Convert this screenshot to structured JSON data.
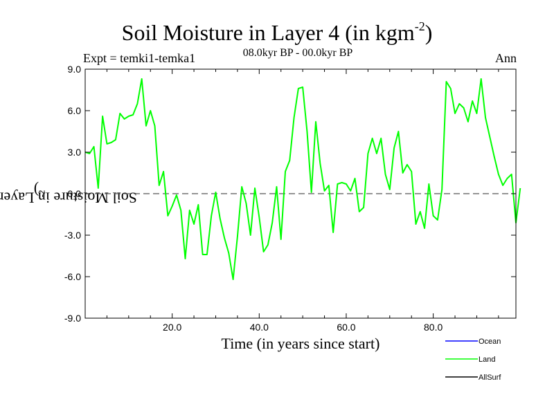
{
  "chart_data": {
    "type": "line",
    "title_main": "Soil Moisture in Layer 4 (in kgm",
    "title_sup": "-2",
    "title_close": ")",
    "expt": "Expt = temki1-temka1",
    "period": "08.0kyr BP - 00.0kyr BP",
    "season": "Ann",
    "xlabel": "Time (in years since start)",
    "ylabel_main": "Soil Moisture in Layer 4 (in kgm",
    "ylabel_sup": "-2",
    "ylabel_close": ")",
    "xlim": [
      0,
      99
    ],
    "ylim": [
      -9,
      9
    ],
    "x_ticks": [
      20,
      40,
      60,
      80
    ],
    "x_tick_labels": [
      "20.0",
      "40.0",
      "60.0",
      "80.0"
    ],
    "y_ticks": [
      -9,
      -6,
      -3,
      0,
      3,
      6,
      9
    ],
    "y_tick_labels": [
      "-9.0",
      "-6.0",
      "-3.0",
      "0.0",
      "3.0",
      "6.0",
      "9.0"
    ],
    "zero_line": 0,
    "colors": {
      "Ocean": "#0000ff",
      "Land": "#00ff00",
      "AllSurf": "#000000"
    },
    "legend": [
      "Ocean",
      "Land",
      "AllSurf"
    ],
    "series": [
      {
        "name": "Land",
        "values": [
          3.0,
          2.9,
          3.4,
          0.4,
          5.6,
          3.6,
          3.7,
          3.9,
          5.8,
          5.4,
          5.6,
          5.7,
          6.5,
          8.3,
          4.9,
          6.0,
          4.9,
          0.6,
          1.6,
          -1.6,
          -0.9,
          -0.1,
          -1.2,
          -4.7,
          -1.2,
          -2.2,
          -0.8,
          -4.4,
          -4.4,
          -1.6,
          0.1,
          -1.8,
          -3.2,
          -4.3,
          -6.2,
          -3.1,
          0.5,
          -0.7,
          -3.0,
          0.4,
          -1.7,
          -4.2,
          -3.7,
          -2.1,
          0.5,
          -3.3,
          1.6,
          2.4,
          5.5,
          7.6,
          7.7,
          4.5,
          0.1,
          5.2,
          2.2,
          0.2,
          0.6,
          -2.8,
          0.7,
          0.8,
          0.7,
          0.2,
          1.1,
          -1.3,
          -1.0,
          2.9,
          4.0,
          2.9,
          4.0,
          1.4,
          0.3,
          3.3,
          4.5,
          1.5,
          2.1,
          1.6,
          -2.2,
          -1.3,
          -2.5,
          0.7,
          -1.6,
          -1.9,
          0.3,
          8.1,
          7.6,
          5.8,
          6.5,
          6.2,
          5.2,
          6.7,
          5.8,
          8.3,
          5.5,
          4.1,
          2.7,
          1.4,
          0.6,
          1.1,
          1.4,
          -2.1,
          0.4
        ]
      }
    ]
  }
}
